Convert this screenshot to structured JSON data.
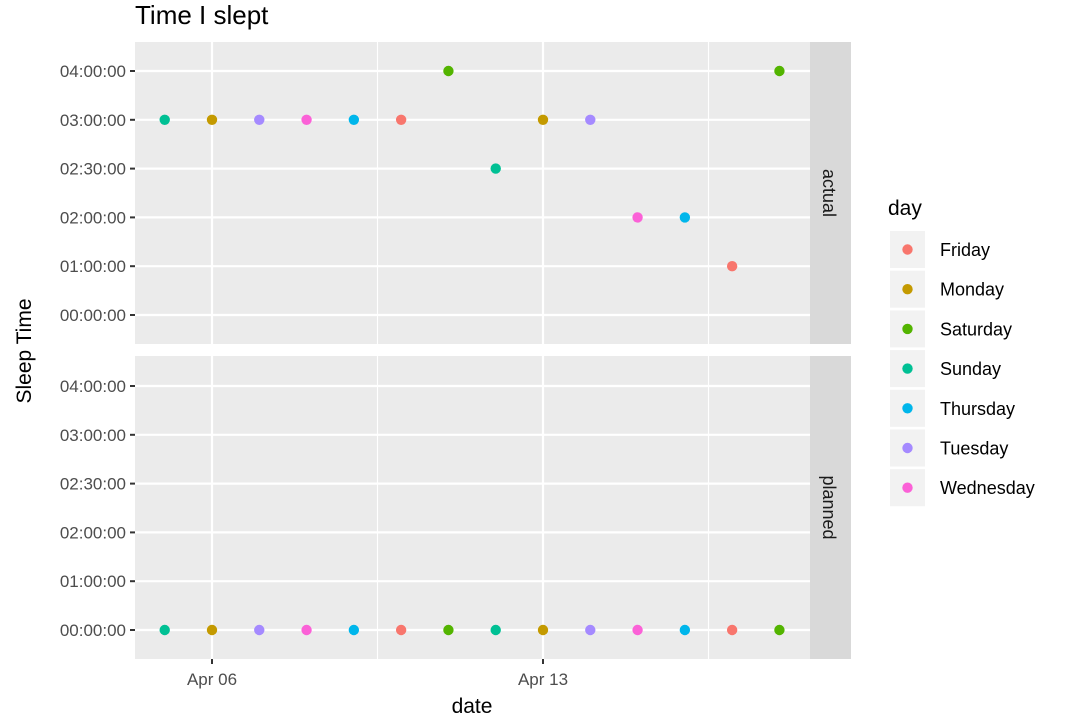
{
  "chart_data": {
    "type": "scatter",
    "title": "Time I slept",
    "xlabel": "date",
    "ylabel": "Sleep Time",
    "x_ticks": [
      "Apr 06",
      "Apr 13"
    ],
    "y_ticks": [
      "00:00:00",
      "01:00:00",
      "02:00:00",
      "02:30:00",
      "03:00:00",
      "04:00:00"
    ],
    "facets": [
      "actual",
      "planned"
    ],
    "legend": {
      "title": "day",
      "position": "right",
      "entries": [
        {
          "name": "Friday",
          "color": "#F8766D"
        },
        {
          "name": "Monday",
          "color": "#C49A00"
        },
        {
          "name": "Saturday",
          "color": "#53B400"
        },
        {
          "name": "Sunday",
          "color": "#00C094"
        },
        {
          "name": "Thursday",
          "color": "#00B6EB"
        },
        {
          "name": "Tuesday",
          "color": "#A58AFF"
        },
        {
          "name": "Wednesday",
          "color": "#FB61D7"
        }
      ]
    },
    "points": {
      "actual": [
        {
          "date": "2020-04-05",
          "day": "Sunday",
          "time": "03:00:00"
        },
        {
          "date": "2020-04-06",
          "day": "Monday",
          "time": "03:00:00"
        },
        {
          "date": "2020-04-07",
          "day": "Tuesday",
          "time": "03:00:00"
        },
        {
          "date": "2020-04-08",
          "day": "Wednesday",
          "time": "03:00:00"
        },
        {
          "date": "2020-04-09",
          "day": "Thursday",
          "time": "03:00:00"
        },
        {
          "date": "2020-04-10",
          "day": "Friday",
          "time": "03:00:00"
        },
        {
          "date": "2020-04-11",
          "day": "Saturday",
          "time": "04:00:00"
        },
        {
          "date": "2020-04-12",
          "day": "Sunday",
          "time": "02:30:00"
        },
        {
          "date": "2020-04-13",
          "day": "Monday",
          "time": "03:00:00"
        },
        {
          "date": "2020-04-14",
          "day": "Tuesday",
          "time": "03:00:00"
        },
        {
          "date": "2020-04-15",
          "day": "Wednesday",
          "time": "02:00:00"
        },
        {
          "date": "2020-04-16",
          "day": "Thursday",
          "time": "02:00:00"
        },
        {
          "date": "2020-04-17",
          "day": "Friday",
          "time": "01:00:00"
        },
        {
          "date": "2020-04-18",
          "day": "Saturday",
          "time": "04:00:00"
        }
      ],
      "planned": [
        {
          "date": "2020-04-05",
          "day": "Sunday",
          "time": "00:00:00"
        },
        {
          "date": "2020-04-06",
          "day": "Monday",
          "time": "00:00:00"
        },
        {
          "date": "2020-04-07",
          "day": "Tuesday",
          "time": "00:00:00"
        },
        {
          "date": "2020-04-08",
          "day": "Wednesday",
          "time": "00:00:00"
        },
        {
          "date": "2020-04-09",
          "day": "Thursday",
          "time": "00:00:00"
        },
        {
          "date": "2020-04-10",
          "day": "Friday",
          "time": "00:00:00"
        },
        {
          "date": "2020-04-11",
          "day": "Saturday",
          "time": "00:00:00"
        },
        {
          "date": "2020-04-12",
          "day": "Sunday",
          "time": "00:00:00"
        },
        {
          "date": "2020-04-13",
          "day": "Monday",
          "time": "00:00:00"
        },
        {
          "date": "2020-04-14",
          "day": "Tuesday",
          "time": "00:00:00"
        },
        {
          "date": "2020-04-15",
          "day": "Wednesday",
          "time": "00:00:00"
        },
        {
          "date": "2020-04-16",
          "day": "Thursday",
          "time": "00:00:00"
        },
        {
          "date": "2020-04-17",
          "day": "Friday",
          "time": "00:00:00"
        },
        {
          "date": "2020-04-18",
          "day": "Saturday",
          "time": "00:00:00"
        }
      ]
    },
    "grid": true,
    "panel_background": "#EBEBEB",
    "strip_background": "#D9D9D9"
  }
}
